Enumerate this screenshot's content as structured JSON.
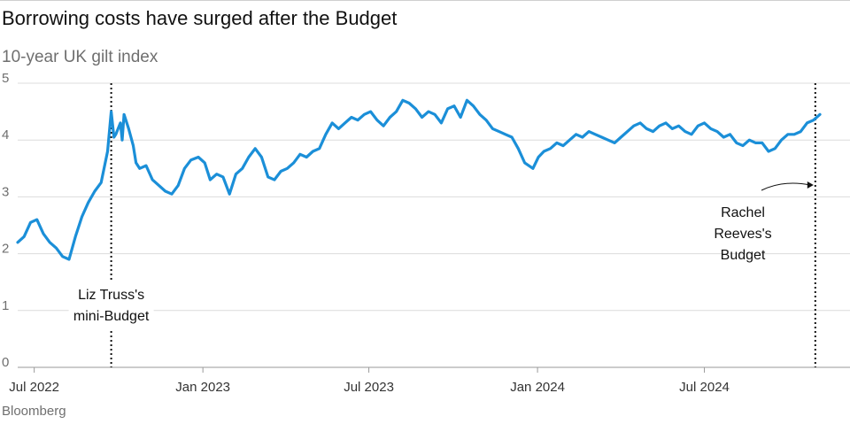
{
  "title": "Borrowing costs have surged after the Budget",
  "subtitle": "10-year UK gilt index",
  "source": "Bloomberg",
  "chart_data": {
    "type": "line",
    "ylim": [
      0,
      5
    ],
    "y_ticks": [
      "0",
      "1",
      "2",
      "3",
      "4",
      "5"
    ],
    "x_ticks": [
      "Jul 2022",
      "Jan 2023",
      "Jul 2023",
      "Jan 2024",
      "Jul 2024"
    ],
    "grid": true,
    "line_color": "#1b8fd8",
    "annotations": [
      {
        "lines": [
          "Liz Truss's",
          "mini-Budget"
        ],
        "x": "2022-09-23"
      },
      {
        "lines": [
          "Rachel",
          "Reeves's",
          "Budget"
        ],
        "x": "2024-10-30"
      }
    ],
    "series": [
      {
        "x": [
          "2022-06-13",
          "2022-06-20",
          "2022-06-27",
          "2022-07-04",
          "2022-07-11",
          "2022-07-18",
          "2022-07-25",
          "2022-08-01",
          "2022-08-08",
          "2022-08-15",
          "2022-08-22",
          "2022-08-29",
          "2022-09-05",
          "2022-09-12",
          "2022-09-19",
          "2022-09-23",
          "2022-09-26",
          "2022-09-28",
          "2022-10-03",
          "2022-10-05",
          "2022-10-07",
          "2022-10-12",
          "2022-10-17",
          "2022-10-20",
          "2022-10-24",
          "2022-10-31",
          "2022-11-07",
          "2022-11-14",
          "2022-11-21",
          "2022-11-28",
          "2022-12-05",
          "2022-12-12",
          "2022-12-19",
          "2022-12-27",
          "2023-01-03",
          "2023-01-09",
          "2023-01-16",
          "2023-01-23",
          "2023-01-30",
          "2023-02-06",
          "2023-02-13",
          "2023-02-20",
          "2023-02-27",
          "2023-03-06",
          "2023-03-13",
          "2023-03-20",
          "2023-03-27",
          "2023-04-03",
          "2023-04-10",
          "2023-04-17",
          "2023-04-24",
          "2023-05-01",
          "2023-05-08",
          "2023-05-15",
          "2023-05-22",
          "2023-05-29",
          "2023-06-05",
          "2023-06-12",
          "2023-06-19",
          "2023-06-26",
          "2023-07-03",
          "2023-07-10",
          "2023-07-17",
          "2023-07-24",
          "2023-07-31",
          "2023-08-07",
          "2023-08-14",
          "2023-08-21",
          "2023-08-28",
          "2023-09-04",
          "2023-09-11",
          "2023-09-18",
          "2023-09-25",
          "2023-10-02",
          "2023-10-09",
          "2023-10-16",
          "2023-10-23",
          "2023-10-30",
          "2023-11-06",
          "2023-11-13",
          "2023-11-20",
          "2023-11-27",
          "2023-12-04",
          "2023-12-11",
          "2023-12-18",
          "2023-12-27",
          "2024-01-02",
          "2024-01-08",
          "2024-01-15",
          "2024-01-22",
          "2024-01-29",
          "2024-02-05",
          "2024-02-12",
          "2024-02-19",
          "2024-02-26",
          "2024-03-04",
          "2024-03-11",
          "2024-03-18",
          "2024-03-25",
          "2024-04-01",
          "2024-04-08",
          "2024-04-15",
          "2024-04-22",
          "2024-04-29",
          "2024-05-06",
          "2024-05-13",
          "2024-05-20",
          "2024-05-27",
          "2024-06-03",
          "2024-06-10",
          "2024-06-17",
          "2024-06-24",
          "2024-07-01",
          "2024-07-08",
          "2024-07-15",
          "2024-07-22",
          "2024-07-29",
          "2024-08-05",
          "2024-08-12",
          "2024-08-19",
          "2024-08-26",
          "2024-09-02",
          "2024-09-09",
          "2024-09-16",
          "2024-09-23",
          "2024-09-30",
          "2024-10-07",
          "2024-10-14",
          "2024-10-21",
          "2024-10-28",
          "2024-11-04"
        ],
        "values": [
          2.2,
          2.3,
          2.55,
          2.6,
          2.35,
          2.2,
          2.1,
          1.95,
          1.9,
          2.3,
          2.65,
          2.9,
          3.1,
          3.25,
          3.8,
          4.5,
          4.05,
          4.1,
          4.3,
          4.0,
          4.45,
          4.2,
          3.9,
          3.6,
          3.5,
          3.55,
          3.3,
          3.2,
          3.1,
          3.05,
          3.2,
          3.5,
          3.65,
          3.7,
          3.6,
          3.3,
          3.4,
          3.35,
          3.05,
          3.4,
          3.5,
          3.7,
          3.85,
          3.7,
          3.35,
          3.3,
          3.45,
          3.5,
          3.6,
          3.75,
          3.7,
          3.8,
          3.85,
          4.1,
          4.3,
          4.2,
          4.3,
          4.4,
          4.35,
          4.45,
          4.5,
          4.35,
          4.25,
          4.4,
          4.5,
          4.7,
          4.65,
          4.55,
          4.4,
          4.5,
          4.45,
          4.3,
          4.55,
          4.6,
          4.4,
          4.7,
          4.6,
          4.45,
          4.35,
          4.2,
          4.15,
          4.1,
          4.05,
          3.85,
          3.6,
          3.5,
          3.7,
          3.8,
          3.85,
          3.95,
          3.9,
          4.0,
          4.1,
          4.05,
          4.15,
          4.1,
          4.05,
          4.0,
          3.95,
          4.05,
          4.15,
          4.25,
          4.3,
          4.2,
          4.15,
          4.25,
          4.3,
          4.2,
          4.25,
          4.15,
          4.1,
          4.25,
          4.3,
          4.2,
          4.15,
          4.05,
          4.1,
          3.95,
          3.9,
          4.0,
          3.95,
          3.95,
          3.8,
          3.85,
          4.0,
          4.1,
          4.1,
          4.15,
          4.3,
          4.35,
          4.45
        ]
      }
    ]
  }
}
